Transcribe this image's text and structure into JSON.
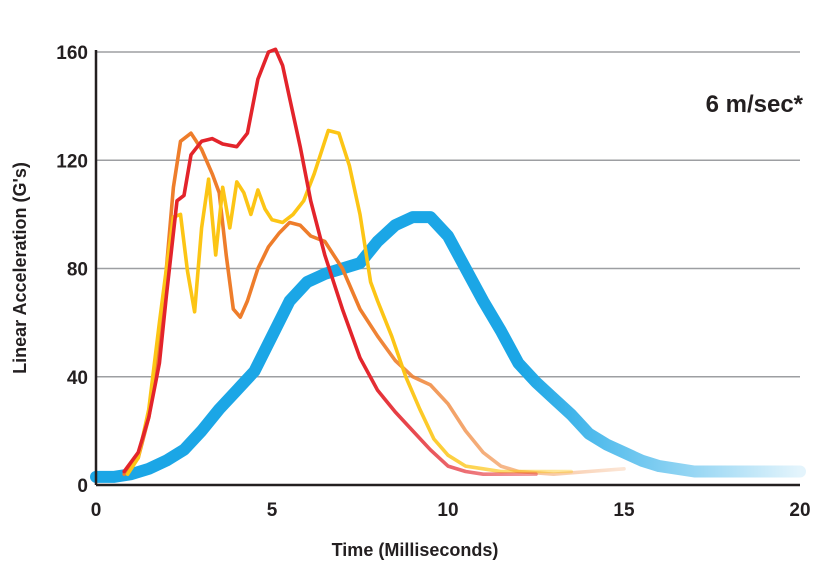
{
  "chart_data": {
    "type": "line",
    "title": "",
    "annotation": "6 m/sec*",
    "xlabel": "Time (Milliseconds)",
    "ylabel": "Linear Acceleration (G's)",
    "xlim": [
      0,
      20
    ],
    "ylim": [
      0,
      160
    ],
    "xticks": [
      0,
      5,
      10,
      15,
      20
    ],
    "yticks": [
      0,
      40,
      80,
      120,
      160
    ],
    "grid": "horizontal",
    "legend": "none",
    "series": [
      {
        "color": "#e3242b",
        "emphasis": "normal",
        "points": [
          [
            0.8,
            5
          ],
          [
            1.2,
            12
          ],
          [
            1.5,
            25
          ],
          [
            1.8,
            45
          ],
          [
            2.0,
            70
          ],
          [
            2.3,
            105
          ],
          [
            2.5,
            107
          ],
          [
            2.7,
            122
          ],
          [
            3.0,
            127
          ],
          [
            3.3,
            128
          ],
          [
            3.6,
            126
          ],
          [
            4.0,
            125
          ],
          [
            4.3,
            130
          ],
          [
            4.6,
            150
          ],
          [
            4.9,
            160
          ],
          [
            5.1,
            161
          ],
          [
            5.3,
            155
          ],
          [
            5.5,
            143
          ],
          [
            5.8,
            125
          ],
          [
            6.1,
            105
          ],
          [
            6.5,
            85
          ],
          [
            7.0,
            65
          ],
          [
            7.5,
            47
          ],
          [
            8.0,
            35
          ],
          [
            8.5,
            27
          ],
          [
            9.0,
            20
          ],
          [
            9.5,
            13
          ],
          [
            10.0,
            7
          ],
          [
            10.5,
            5
          ],
          [
            11.0,
            4
          ],
          [
            11.5,
            4
          ],
          [
            12.0,
            4
          ],
          [
            12.5,
            4
          ]
        ]
      },
      {
        "color": "#ee7d2b",
        "emphasis": "normal",
        "points": [
          [
            0.8,
            4
          ],
          [
            1.2,
            10
          ],
          [
            1.5,
            25
          ],
          [
            1.8,
            50
          ],
          [
            2.0,
            80
          ],
          [
            2.2,
            110
          ],
          [
            2.4,
            127
          ],
          [
            2.7,
            130
          ],
          [
            3.0,
            124
          ],
          [
            3.3,
            115
          ],
          [
            3.5,
            108
          ],
          [
            3.7,
            85
          ],
          [
            3.9,
            65
          ],
          [
            4.1,
            62
          ],
          [
            4.3,
            68
          ],
          [
            4.6,
            80
          ],
          [
            4.9,
            88
          ],
          [
            5.2,
            93
          ],
          [
            5.5,
            97
          ],
          [
            5.8,
            96
          ],
          [
            6.1,
            92
          ],
          [
            6.5,
            90
          ],
          [
            7.0,
            80
          ],
          [
            7.5,
            65
          ],
          [
            8.0,
            55
          ],
          [
            8.5,
            46
          ],
          [
            9.0,
            40
          ],
          [
            9.5,
            37
          ],
          [
            10.0,
            30
          ],
          [
            10.5,
            20
          ],
          [
            11.0,
            12
          ],
          [
            11.5,
            7
          ],
          [
            12.0,
            5
          ],
          [
            13.0,
            4
          ],
          [
            14.0,
            5
          ],
          [
            15.0,
            6
          ]
        ]
      },
      {
        "color": "#fcc515",
        "emphasis": "normal",
        "points": [
          [
            0.9,
            4
          ],
          [
            1.2,
            10
          ],
          [
            1.5,
            28
          ],
          [
            1.8,
            60
          ],
          [
            2.0,
            80
          ],
          [
            2.2,
            99
          ],
          [
            2.4,
            100
          ],
          [
            2.6,
            79
          ],
          [
            2.8,
            64
          ],
          [
            3.0,
            95
          ],
          [
            3.2,
            113
          ],
          [
            3.4,
            85
          ],
          [
            3.6,
            110
          ],
          [
            3.8,
            95
          ],
          [
            4.0,
            112
          ],
          [
            4.2,
            108
          ],
          [
            4.4,
            100
          ],
          [
            4.6,
            109
          ],
          [
            4.8,
            102
          ],
          [
            5.0,
            98
          ],
          [
            5.3,
            97
          ],
          [
            5.6,
            100
          ],
          [
            5.9,
            105
          ],
          [
            6.2,
            115
          ],
          [
            6.6,
            131
          ],
          [
            6.9,
            130
          ],
          [
            7.2,
            118
          ],
          [
            7.5,
            100
          ],
          [
            7.8,
            75
          ],
          [
            8.0,
            68
          ],
          [
            8.4,
            55
          ],
          [
            8.8,
            40
          ],
          [
            9.2,
            28
          ],
          [
            9.6,
            17
          ],
          [
            10.0,
            11
          ],
          [
            10.5,
            7
          ],
          [
            11.0,
            6
          ],
          [
            11.5,
            5
          ],
          [
            12.5,
            5
          ],
          [
            13.5,
            5
          ]
        ]
      },
      {
        "color": "#1ba6e6",
        "emphasis": "bold",
        "points": [
          [
            0,
            3
          ],
          [
            0.5,
            3
          ],
          [
            1.0,
            4
          ],
          [
            1.5,
            6
          ],
          [
            2.0,
            9
          ],
          [
            2.5,
            13
          ],
          [
            3.0,
            20
          ],
          [
            3.5,
            28
          ],
          [
            4.0,
            35
          ],
          [
            4.5,
            42
          ],
          [
            5.0,
            55
          ],
          [
            5.5,
            68
          ],
          [
            6.0,
            75
          ],
          [
            6.5,
            78
          ],
          [
            7.0,
            80
          ],
          [
            7.5,
            82
          ],
          [
            8.0,
            90
          ],
          [
            8.5,
            96
          ],
          [
            9.0,
            99
          ],
          [
            9.5,
            99
          ],
          [
            10.0,
            92
          ],
          [
            10.5,
            80
          ],
          [
            11.0,
            68
          ],
          [
            11.5,
            57
          ],
          [
            12.0,
            45
          ],
          [
            12.5,
            38
          ],
          [
            13.0,
            32
          ],
          [
            13.5,
            26
          ],
          [
            14.0,
            19
          ],
          [
            14.5,
            15
          ],
          [
            15.0,
            12
          ],
          [
            15.5,
            9
          ],
          [
            16.0,
            7
          ],
          [
            17.0,
            5
          ],
          [
            18.0,
            5
          ],
          [
            19.0,
            5
          ],
          [
            20.0,
            5
          ]
        ]
      }
    ]
  }
}
